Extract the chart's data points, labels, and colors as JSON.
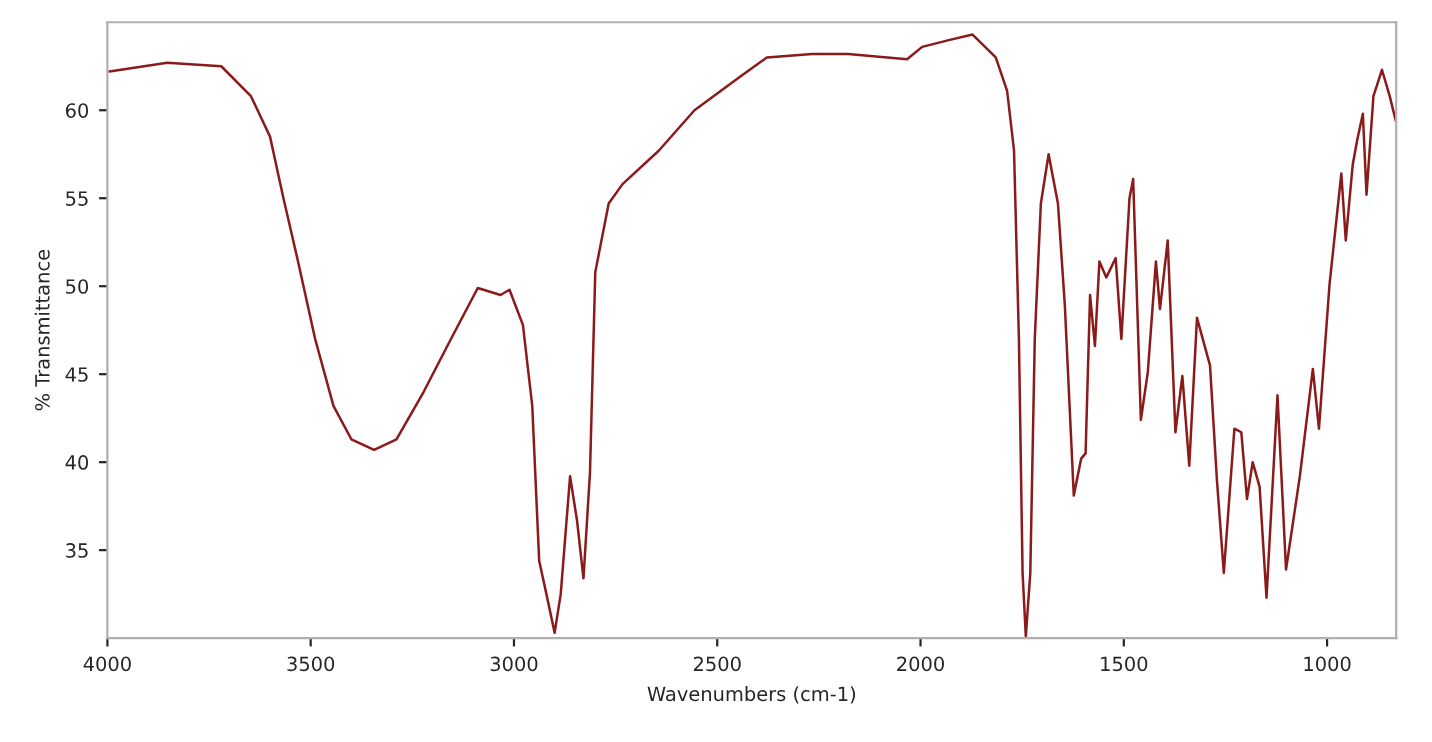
{
  "chart_data": {
    "type": "line",
    "xlabel": "Wavenumbers (cm-1)",
    "ylabel": "% Transmittance",
    "xlim": [
      4000,
      830
    ],
    "ylim": [
      30,
      65
    ],
    "xticks": [
      4000,
      3500,
      3000,
      2500,
      2000,
      1500,
      1000
    ],
    "yticks": [
      35,
      40,
      45,
      50,
      55,
      60
    ],
    "grid": false,
    "marker": "none",
    "line_style": "solid",
    "series": [
      {
        "color": "#8b1a1a",
        "x": [
          3995,
          3853,
          3720,
          3647,
          3600,
          3567,
          3533,
          3489,
          3444,
          3400,
          3344,
          3289,
          3222,
          3155,
          3089,
          3033,
          3011,
          2978,
          2955,
          2938,
          2922,
          2900,
          2885,
          2862,
          2845,
          2829,
          2813,
          2800,
          2767,
          2733,
          2644,
          2556,
          2444,
          2378,
          2267,
          2178,
          2033,
          1996,
          1928,
          1872,
          1815,
          1787,
          1770,
          1758,
          1749,
          1741,
          1730,
          1719,
          1704,
          1685,
          1662,
          1645,
          1623,
          1605,
          1594,
          1583,
          1571,
          1560,
          1543,
          1520,
          1506,
          1486,
          1477,
          1458,
          1441,
          1421,
          1411,
          1392,
          1373,
          1356,
          1339,
          1320,
          1288,
          1271,
          1254,
          1228,
          1211,
          1197,
          1183,
          1166,
          1149,
          1122,
          1101,
          1067,
          1035,
          1020,
          994,
          965,
          954,
          937,
          926,
          912,
          903,
          886,
          865,
          846,
          831
        ],
        "values": [
          62.2,
          62.7,
          62.5,
          60.8,
          58.5,
          55.0,
          51.6,
          47.0,
          43.2,
          41.3,
          40.7,
          41.3,
          44.0,
          47.0,
          49.9,
          49.5,
          49.8,
          47.8,
          43.2,
          34.4,
          32.7,
          30.3,
          32.5,
          39.2,
          36.7,
          33.4,
          39.4,
          50.8,
          54.7,
          55.8,
          57.7,
          60.0,
          61.9,
          63.0,
          63.2,
          63.2,
          62.9,
          63.6,
          64.0,
          64.3,
          63.0,
          61.1,
          57.7,
          47.0,
          33.7,
          30.1,
          33.7,
          47.0,
          54.7,
          57.5,
          54.7,
          48.9,
          38.1,
          40.2,
          40.5,
          49.5,
          46.6,
          51.4,
          50.5,
          51.6,
          47.0,
          55.0,
          56.1,
          42.4,
          45.1,
          51.4,
          48.7,
          52.6,
          41.7,
          44.9,
          39.8,
          48.2,
          45.5,
          39.0,
          33.7,
          41.9,
          41.7,
          37.9,
          40.0,
          38.6,
          32.3,
          43.8,
          33.9,
          39.2,
          45.3,
          41.9,
          50.1,
          56.4,
          52.6,
          56.9,
          58.3,
          59.8,
          55.2,
          60.8,
          62.3,
          60.8,
          59.4
        ]
      }
    ]
  }
}
